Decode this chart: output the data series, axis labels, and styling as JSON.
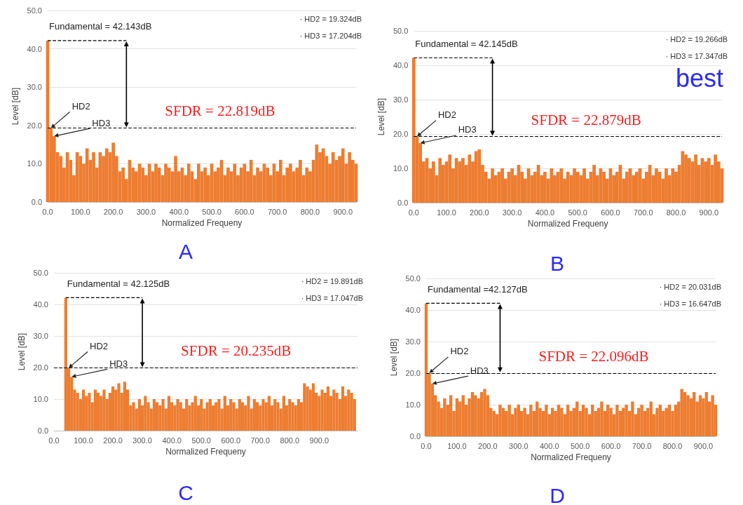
{
  "chart_data": [
    {
      "type": "bar",
      "title": "A",
      "xlabel": "Normalized Frequeny",
      "ylabel": "Level [dB]",
      "grid": "y",
      "xlim": [
        0,
        940
      ],
      "xticks": [
        {
          "value": 0,
          "label": "0.0"
        },
        {
          "value": 100,
          "label": "100.0"
        },
        {
          "value": 200,
          "label": "200.0"
        },
        {
          "value": 300,
          "label": "300.0"
        },
        {
          "value": 400,
          "label": "400.0"
        },
        {
          "value": 500,
          "label": "500.0"
        },
        {
          "value": 600,
          "label": "600.0"
        },
        {
          "value": 700,
          "label": "700.0"
        },
        {
          "value": 800,
          "label": "800.0"
        },
        {
          "value": 900,
          "label": "900.0"
        }
      ],
      "ylim": [
        0,
        50
      ],
      "yticks": [
        {
          "value": 0,
          "label": "0.0"
        },
        {
          "value": 10,
          "label": "10.0"
        },
        {
          "value": 20,
          "label": "20.0"
        },
        {
          "value": 30,
          "label": "30.0"
        },
        {
          "value": 40,
          "label": "40.0"
        },
        {
          "value": 50,
          "label": "50.0"
        }
      ],
      "series": [
        {
          "color": "#ed7d31",
          "x": [
            0,
            10,
            20,
            30,
            40,
            50,
            60,
            70,
            80,
            90,
            100,
            110,
            120,
            130,
            140,
            150,
            160,
            170,
            180,
            190,
            200,
            210,
            220,
            230,
            240,
            250,
            260,
            270,
            280,
            290,
            300,
            310,
            320,
            330,
            340,
            350,
            360,
            370,
            380,
            390,
            400,
            410,
            420,
            430,
            440,
            450,
            460,
            470,
            480,
            490,
            500,
            510,
            520,
            530,
            540,
            550,
            560,
            570,
            580,
            590,
            600,
            610,
            620,
            630,
            640,
            650,
            660,
            670,
            680,
            690,
            700,
            710,
            720,
            730,
            740,
            750,
            760,
            770,
            780,
            790,
            800,
            810,
            820,
            830,
            840,
            850,
            860,
            870,
            880,
            890,
            900,
            910,
            920,
            930,
            940
          ],
          "values": [
            42.143,
            19.324,
            17.204,
            13,
            12,
            9,
            13,
            11,
            7,
            13,
            12,
            10,
            14,
            11,
            13,
            9,
            13,
            12,
            14,
            13,
            15.5,
            12,
            8,
            9,
            6,
            11,
            9,
            8,
            10,
            9,
            7,
            10,
            8,
            10,
            9,
            7,
            10,
            9,
            8,
            12,
            8,
            9,
            7,
            10,
            8,
            6,
            10,
            8,
            9,
            7,
            10,
            8,
            9,
            11,
            7,
            9,
            8,
            10,
            7,
            9,
            10,
            8,
            11,
            7,
            9,
            8,
            10,
            9,
            7,
            10,
            8,
            11,
            7,
            9,
            10,
            8,
            9,
            11,
            7,
            9,
            8,
            11,
            15,
            13,
            14,
            12,
            10,
            13,
            11,
            12,
            14,
            10,
            13,
            11,
            10
          ]
        },
        {
          "type": "line",
          "color": "#000000",
          "line_style": "dashed",
          "x": [
            0,
            240
          ],
          "values": [
            42.143,
            42.143
          ]
        }
      ],
      "ref_lines": [
        {
          "axis": "y",
          "value": 19.324,
          "color": "#000000",
          "line_style": "dashed"
        }
      ],
      "annotations": [
        {
          "text": "Fundamental = 42.143dB",
          "x": 0,
          "y": 42.143
        },
        {
          "text": "HD2",
          "x": 10,
          "y": 19.324
        },
        {
          "text": "HD3",
          "x": 20,
          "y": 17.204
        },
        "SFDR = 22.819dB",
        "· HD2 = 19.324dB",
        "· HD3 = 17.204dB"
      ]
    },
    {
      "type": "bar",
      "title": "B",
      "subtitle": "best",
      "xlabel": "Normalized Frequeny",
      "ylabel": "Level [dB]",
      "grid": "y",
      "xlim": [
        0,
        940
      ],
      "xticks": [
        {
          "value": 0,
          "label": "0.0"
        },
        {
          "value": 100,
          "label": "100.0"
        },
        {
          "value": 200,
          "label": "200.0"
        },
        {
          "value": 300,
          "label": "300.0"
        },
        {
          "value": 400,
          "label": "400.0"
        },
        {
          "value": 500,
          "label": "500.0"
        },
        {
          "value": 600,
          "label": "600.0"
        },
        {
          "value": 700,
          "label": "700.0"
        },
        {
          "value": 800,
          "label": "800.0"
        },
        {
          "value": 900,
          "label": "900.0"
        }
      ],
      "ylim": [
        0,
        50
      ],
      "yticks": [
        {
          "value": 0,
          "label": "0.0"
        },
        {
          "value": 10,
          "label": "10.0"
        },
        {
          "value": 20,
          "label": "20.0"
        },
        {
          "value": 30,
          "label": "30.0"
        },
        {
          "value": 40,
          "label": "40.0"
        },
        {
          "value": 50,
          "label": "50.0"
        }
      ],
      "series": [
        {
          "color": "#ed7d31",
          "x": [
            0,
            10,
            20,
            30,
            40,
            50,
            60,
            70,
            80,
            90,
            100,
            110,
            120,
            130,
            140,
            150,
            160,
            170,
            180,
            190,
            200,
            210,
            220,
            230,
            240,
            250,
            260,
            270,
            280,
            290,
            300,
            310,
            320,
            330,
            340,
            350,
            360,
            370,
            380,
            390,
            400,
            410,
            420,
            430,
            440,
            450,
            460,
            470,
            480,
            490,
            500,
            510,
            520,
            530,
            540,
            550,
            560,
            570,
            580,
            590,
            600,
            610,
            620,
            630,
            640,
            650,
            660,
            670,
            680,
            690,
            700,
            710,
            720,
            730,
            740,
            750,
            760,
            770,
            780,
            790,
            800,
            810,
            820,
            830,
            840,
            850,
            860,
            870,
            880,
            890,
            900,
            910,
            920,
            930,
            940
          ],
          "values": [
            42.145,
            19.266,
            17.347,
            12,
            13,
            10,
            12,
            8,
            13,
            11,
            12,
            14,
            10,
            13,
            12,
            13,
            11,
            14,
            12,
            15,
            15.5,
            11,
            9,
            7,
            10,
            8,
            9,
            10,
            7,
            9,
            10,
            8,
            11,
            9,
            7,
            10,
            8,
            9,
            11,
            8,
            9,
            7,
            10,
            8,
            9,
            10,
            7,
            9,
            8,
            10,
            9,
            8,
            10,
            7,
            9,
            11,
            8,
            10,
            9,
            7,
            10,
            8,
            9,
            11,
            7,
            9,
            10,
            8,
            9,
            10,
            7,
            9,
            11,
            8,
            10,
            9,
            7,
            10,
            8,
            10,
            9,
            11,
            15,
            14,
            13,
            12,
            14,
            11,
            13,
            12,
            13,
            11,
            14,
            12,
            10
          ]
        },
        {
          "type": "line",
          "color": "#000000",
          "line_style": "dashed",
          "x": [
            0,
            240
          ],
          "values": [
            42.145,
            42.145
          ]
        }
      ],
      "ref_lines": [
        {
          "axis": "y",
          "value": 19.266,
          "color": "#000000",
          "line_style": "dashed"
        }
      ],
      "annotations": [
        {
          "text": "Fundamental = 42.145dB",
          "x": 0,
          "y": 42.145
        },
        {
          "text": "HD2",
          "x": 10,
          "y": 19.266
        },
        {
          "text": "HD3",
          "x": 20,
          "y": 17.347
        },
        "SFDR = 22.879dB",
        "· HD2 = 19.266dB",
        "· HD3 = 17.347dB"
      ]
    },
    {
      "type": "bar",
      "title": "C",
      "xlabel": "Normalized Frequeny",
      "ylabel": "Level [dB]",
      "grid": "y",
      "xlim": [
        0,
        1030
      ],
      "xticks": [
        {
          "value": 0,
          "label": "0.0"
        },
        {
          "value": 100,
          "label": "100.0"
        },
        {
          "value": 200,
          "label": "200.0"
        },
        {
          "value": 300,
          "label": "300.0"
        },
        {
          "value": 400,
          "label": "400.0"
        },
        {
          "value": 500,
          "label": "500.0"
        },
        {
          "value": 600,
          "label": "600.0"
        },
        {
          "value": 700,
          "label": "700.0"
        },
        {
          "value": 800,
          "label": "800.0"
        },
        {
          "value": 900,
          "label": "900.0"
        }
      ],
      "ylim": [
        0,
        50
      ],
      "yticks": [
        {
          "value": 0,
          "label": "0.0"
        },
        {
          "value": 10,
          "label": "10.0"
        },
        {
          "value": 20,
          "label": "20.0"
        },
        {
          "value": 30,
          "label": "30.0"
        },
        {
          "value": 40,
          "label": "40.0"
        },
        {
          "value": 50,
          "label": "50.0"
        }
      ],
      "series": [
        {
          "color": "#ed7d31",
          "x": [
            40,
            50,
            60,
            70,
            80,
            90,
            100,
            110,
            120,
            130,
            140,
            150,
            160,
            170,
            180,
            190,
            200,
            210,
            220,
            230,
            240,
            250,
            260,
            270,
            280,
            290,
            300,
            310,
            320,
            330,
            340,
            350,
            360,
            370,
            380,
            390,
            400,
            410,
            420,
            430,
            440,
            450,
            460,
            470,
            480,
            490,
            500,
            510,
            520,
            530,
            540,
            550,
            560,
            570,
            580,
            590,
            600,
            610,
            620,
            630,
            640,
            650,
            660,
            670,
            680,
            690,
            700,
            710,
            720,
            730,
            740,
            750,
            760,
            770,
            780,
            790,
            800,
            810,
            820,
            830,
            840,
            850,
            860,
            870,
            880,
            890,
            900,
            910,
            920,
            930,
            940,
            950,
            960,
            970,
            980,
            990,
            1000,
            1010,
            1020
          ],
          "values": [
            42.125,
            19.891,
            17.047,
            13,
            12,
            10,
            13,
            11,
            12,
            9,
            13,
            12,
            11,
            13,
            10,
            12,
            14,
            13,
            15,
            12,
            15.5,
            13,
            8,
            9,
            7,
            10,
            8,
            11,
            9,
            7,
            10,
            9,
            8,
            10,
            7,
            11,
            9,
            8,
            10,
            9,
            7,
            10,
            8,
            9,
            11,
            8,
            10,
            7,
            9,
            10,
            8,
            9,
            10,
            7,
            11,
            8,
            10,
            9,
            7,
            10,
            9,
            8,
            11,
            7,
            10,
            9,
            8,
            10,
            9,
            11,
            8,
            10,
            9,
            7,
            11,
            8,
            10,
            9,
            8,
            10,
            9,
            15,
            14,
            13,
            15,
            12,
            11,
            13,
            12,
            14,
            11,
            13,
            12,
            10,
            14,
            11,
            13,
            12,
            10
          ]
        },
        {
          "type": "line",
          "color": "#000000",
          "line_style": "dashed",
          "x": [
            40,
            300
          ],
          "values": [
            42.125,
            42.125
          ]
        }
      ],
      "ref_lines": [
        {
          "axis": "y",
          "value": 19.891,
          "color": "#000000",
          "line_style": "dashed"
        }
      ],
      "annotations": [
        {
          "text": "Fundamental = 42.125dB",
          "x": 40,
          "y": 42.125
        },
        {
          "text": "HD2",
          "x": 50,
          "y": 19.891
        },
        {
          "text": "HD3",
          "x": 60,
          "y": 17.047
        },
        "SFDR = 20.235dB",
        "· HD2 = 19.891dB",
        "· HD3 = 17.047dB"
      ]
    },
    {
      "type": "bar",
      "title": "D",
      "xlabel": "Normalized Frequeny",
      "ylabel": "Level [dB]",
      "grid": "y",
      "xlim": [
        0,
        940
      ],
      "xticks": [
        {
          "value": 0,
          "label": "0.0"
        },
        {
          "value": 100,
          "label": "100.0"
        },
        {
          "value": 200,
          "label": "200.0"
        },
        {
          "value": 300,
          "label": "300.0"
        },
        {
          "value": 400,
          "label": "400.0"
        },
        {
          "value": 500,
          "label": "500.0"
        },
        {
          "value": 600,
          "label": "600.0"
        },
        {
          "value": 700,
          "label": "700.0"
        },
        {
          "value": 800,
          "label": "800.0"
        },
        {
          "value": 900,
          "label": "900.0"
        }
      ],
      "ylim": [
        0,
        50
      ],
      "yticks": [
        {
          "value": 0,
          "label": "0.0"
        },
        {
          "value": 10,
          "label": "10.0"
        },
        {
          "value": 20,
          "label": "20.0"
        },
        {
          "value": 30,
          "label": "30.0"
        },
        {
          "value": 40,
          "label": "40.0"
        },
        {
          "value": 50,
          "label": "50.0"
        }
      ],
      "series": [
        {
          "color": "#ed7d31",
          "x": [
            0,
            10,
            20,
            30,
            40,
            50,
            60,
            70,
            80,
            90,
            100,
            110,
            120,
            130,
            140,
            150,
            160,
            170,
            180,
            190,
            200,
            210,
            220,
            230,
            240,
            250,
            260,
            270,
            280,
            290,
            300,
            310,
            320,
            330,
            340,
            350,
            360,
            370,
            380,
            390,
            400,
            410,
            420,
            430,
            440,
            450,
            460,
            470,
            480,
            490,
            500,
            510,
            520,
            530,
            540,
            550,
            560,
            570,
            580,
            590,
            600,
            610,
            620,
            630,
            640,
            650,
            660,
            670,
            680,
            690,
            700,
            710,
            720,
            730,
            740,
            750,
            760,
            770,
            780,
            790,
            800,
            810,
            820,
            830,
            840,
            850,
            860,
            870,
            880,
            890,
            900,
            910,
            920,
            930,
            940
          ],
          "values": [
            42.127,
            20.031,
            16.647,
            13,
            11,
            9,
            12,
            10,
            13,
            8,
            12,
            11,
            13,
            10,
            12,
            14,
            13,
            12,
            14,
            15,
            13,
            9,
            8,
            7,
            10,
            9,
            8,
            10,
            7,
            9,
            10,
            8,
            9,
            7,
            10,
            8,
            11,
            9,
            8,
            10,
            7,
            9,
            8,
            10,
            9,
            7,
            10,
            8,
            9,
            11,
            8,
            10,
            9,
            7,
            10,
            8,
            9,
            11,
            8,
            10,
            9,
            7,
            10,
            8,
            9,
            10,
            8,
            11,
            7,
            9,
            10,
            8,
            9,
            11,
            7,
            9,
            10,
            8,
            9,
            10,
            8,
            10,
            11,
            15,
            14,
            13,
            12,
            14,
            11,
            13,
            12,
            14,
            11,
            13,
            10
          ]
        },
        {
          "type": "line",
          "color": "#000000",
          "line_style": "dashed",
          "x": [
            0,
            240
          ],
          "values": [
            42.127,
            42.127
          ]
        }
      ],
      "ref_lines": [
        {
          "axis": "y",
          "value": 20.031,
          "color": "#000000",
          "line_style": "dashed"
        }
      ],
      "annotations": [
        {
          "text": "Fundamental =42.127dB",
          "x": 0,
          "y": 42.127
        },
        {
          "text": "HD2",
          "x": 10,
          "y": 20.031
        },
        {
          "text": "HD3",
          "x": 20,
          "y": 16.647
        },
        "SFDR = 22.096dB",
        "· HD2 = 20.031dB",
        "· HD3 = 16.647dB"
      ]
    }
  ]
}
